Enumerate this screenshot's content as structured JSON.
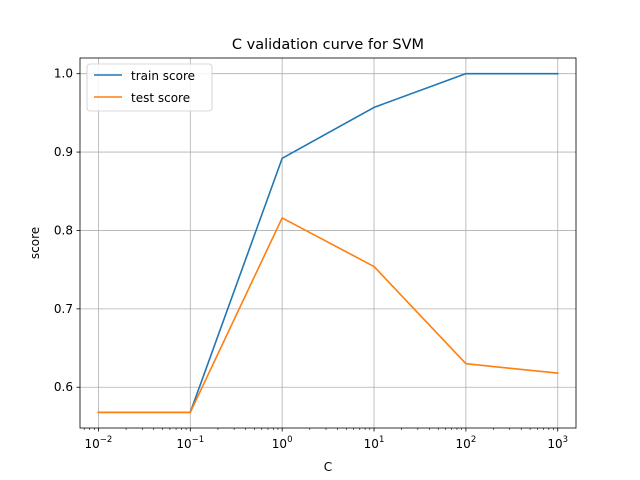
{
  "chart_data": {
    "type": "line",
    "title": "C validation curve for SVM",
    "xlabel": "C",
    "ylabel": "score",
    "x_scale": "log",
    "x": [
      0.01,
      0.1,
      1,
      10,
      100,
      1000
    ],
    "x_ticks": [
      {
        "value": 0.01,
        "base": "10",
        "exp": "−2"
      },
      {
        "value": 0.1,
        "base": "10",
        "exp": "−1"
      },
      {
        "value": 1,
        "base": "10",
        "exp": "0"
      },
      {
        "value": 10,
        "base": "10",
        "exp": "1"
      },
      {
        "value": 100,
        "base": "10",
        "exp": "2"
      },
      {
        "value": 1000,
        "base": "10",
        "exp": "3"
      }
    ],
    "y_ticks": [
      "0.6",
      "0.7",
      "0.8",
      "0.9",
      "1.0"
    ],
    "ylim": [
      0.548,
      1.02
    ],
    "xlim": [
      0.0063,
      1580
    ],
    "grid": true,
    "legend_position": "top-left",
    "series": [
      {
        "name": "train score",
        "color": "#1f77b4",
        "values": [
          0.568,
          0.568,
          0.892,
          0.957,
          1.0,
          1.0
        ]
      },
      {
        "name": "test score",
        "color": "#ff7f0e",
        "values": [
          0.568,
          0.568,
          0.816,
          0.754,
          0.63,
          0.618
        ]
      }
    ]
  }
}
